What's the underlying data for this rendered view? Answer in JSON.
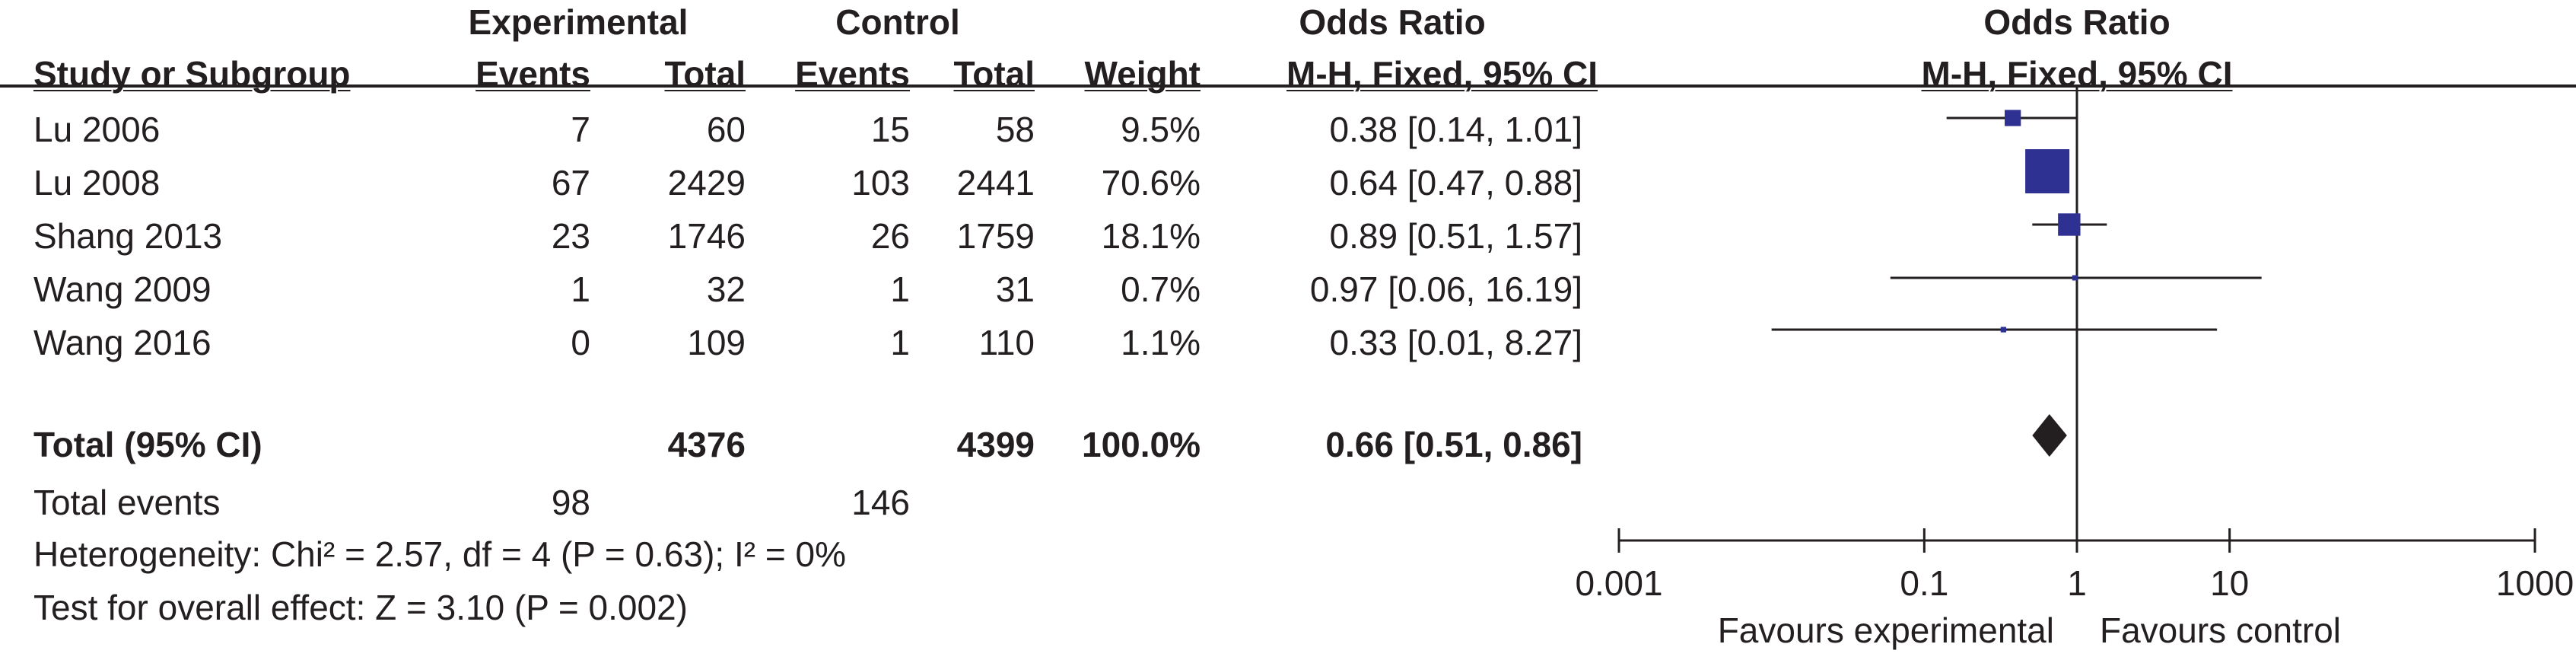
{
  "header": {
    "group1": "Experimental",
    "group2": "Control",
    "or_title": "Odds Ratio",
    "plot_title": "Odds Ratio",
    "col_study": "Study or Subgroup",
    "col_events1": "Events",
    "col_total1": "Total",
    "col_events2": "Events",
    "col_total2": "Total",
    "col_weight": "Weight",
    "col_method": "M-H, Fixed, 95% CI",
    "plot_method": "M-H, Fixed, 95% CI"
  },
  "studies": [
    {
      "name": "Lu 2006",
      "e_events": "7",
      "e_total": "60",
      "c_events": "15",
      "c_total": "58",
      "weight": "9.5%",
      "ci_text": "0.38 [0.14, 1.01]"
    },
    {
      "name": "Lu 2008",
      "e_events": "67",
      "e_total": "2429",
      "c_events": "103",
      "c_total": "2441",
      "weight": "70.6%",
      "ci_text": "0.64 [0.47, 0.88]"
    },
    {
      "name": "Shang 2013",
      "e_events": "23",
      "e_total": "1746",
      "c_events": "26",
      "c_total": "1759",
      "weight": "18.1%",
      "ci_text": "0.89 [0.51, 1.57]"
    },
    {
      "name": "Wang 2009",
      "e_events": "1",
      "e_total": "32",
      "c_events": "1",
      "c_total": "31",
      "weight": "0.7%",
      "ci_text": "0.97 [0.06, 16.19]"
    },
    {
      "name": "Wang 2016",
      "e_events": "0",
      "e_total": "109",
      "c_events": "1",
      "c_total": "110",
      "weight": "1.1%",
      "ci_text": "0.33 [0.01, 8.27]"
    }
  ],
  "total": {
    "label": "Total (95% CI)",
    "e_total": "4376",
    "c_total": "4399",
    "weight": "100.0%",
    "ci_text": "0.66 [0.51, 0.86]"
  },
  "events": {
    "label": "Total events",
    "e_events": "98",
    "c_events": "146"
  },
  "heterogeneity": "Heterogeneity: Chi² = 2.57, df = 4 (P = 0.63); I² = 0%",
  "overall_effect": "Test for overall effect: Z = 3.10 (P = 0.002)",
  "axis": {
    "tick_labels": [
      "0.001",
      "0.1",
      "1",
      "10",
      "1000"
    ],
    "favours_left": "Favours experimental",
    "favours_right": "Favours control"
  },
  "colors": {
    "study_marker": "#2e3192",
    "pooled_marker": "#231f20",
    "line": "#231f20"
  },
  "chart_data": {
    "type": "scatter",
    "xscale": "log",
    "xlim": [
      0.001,
      1000
    ],
    "xticks": [
      0.001,
      0.1,
      1,
      10,
      1000
    ],
    "reference_line": 1,
    "series": [
      {
        "x": [
          0.38,
          0.64,
          0.89,
          0.97,
          0.33
        ],
        "lower": [
          0.14,
          0.47,
          0.51,
          0.06,
          0.01
        ],
        "upper": [
          1.01,
          0.88,
          1.57,
          16.19,
          8.27
        ],
        "weight": [
          9.5,
          70.6,
          18.1,
          0.7,
          1.1
        ]
      }
    ],
    "pooled": {
      "x": 0.66,
      "lower": 0.51,
      "upper": 0.86
    }
  }
}
